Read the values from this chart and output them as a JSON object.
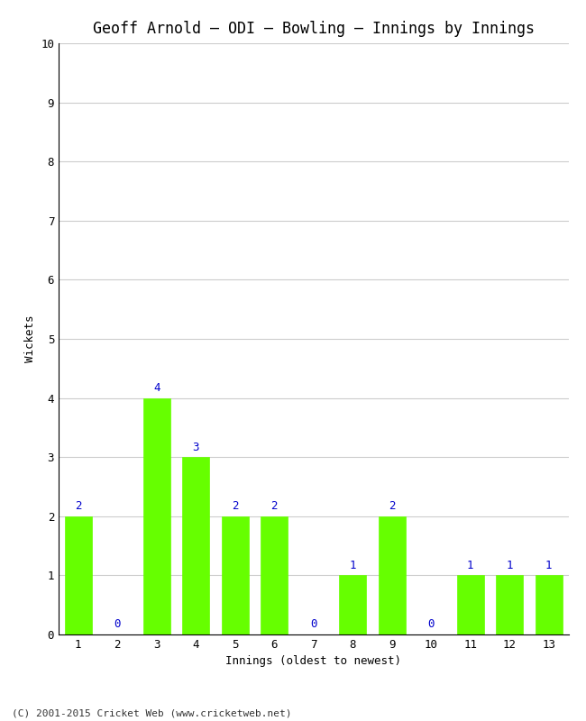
{
  "title": "Geoff Arnold – ODI – Bowling – Innings by Innings",
  "xlabel": "Innings (oldest to newest)",
  "ylabel": "Wickets",
  "categories": [
    "1",
    "2",
    "3",
    "4",
    "5",
    "6",
    "7",
    "8",
    "9",
    "10",
    "11",
    "12",
    "13"
  ],
  "values": [
    2,
    0,
    4,
    3,
    2,
    2,
    0,
    1,
    2,
    0,
    1,
    1,
    1
  ],
  "bar_color": "#66ff00",
  "bar_edge_color": "#66ff00",
  "label_color": "#0000cc",
  "ylim": [
    0,
    10
  ],
  "yticks": [
    0,
    1,
    2,
    3,
    4,
    5,
    6,
    7,
    8,
    9,
    10
  ],
  "grid_color": "#cccccc",
  "bg_color": "#ffffff",
  "title_fontsize": 12,
  "axis_label_fontsize": 9,
  "tick_fontsize": 9,
  "label_fontsize": 9,
  "footer": "(C) 2001-2015 Cricket Web (www.cricketweb.net)"
}
